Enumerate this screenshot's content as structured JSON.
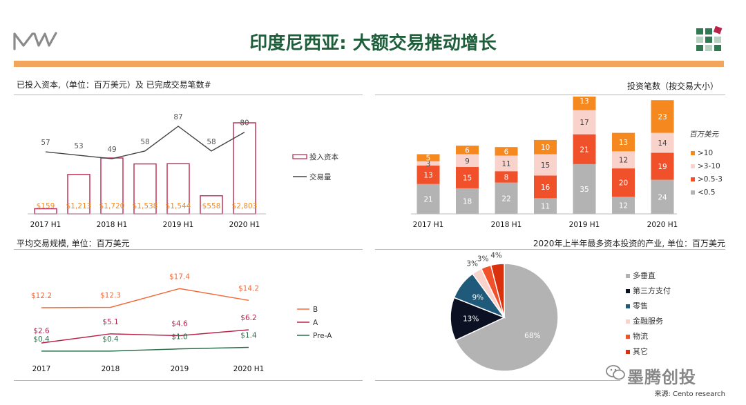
{
  "header": {
    "title": "印度尼西亚: 大额交易推动增长"
  },
  "footer": {
    "watermark": "墨腾创投",
    "source": "来源: Cento research"
  },
  "colors": {
    "brand_green": "#1f5e3b",
    "accent_orange": "#f2a55c",
    "bar_outline": "#c0335a"
  },
  "chart_data": [
    {
      "id": "invested-capital",
      "type": "bar",
      "title": "已投入资本,（单位：百万美元）及 已完成交易笔数#",
      "categories": [
        "2017 H1",
        "2017 H2",
        "2018 H1",
        "2018 H2",
        "2019 H1",
        "2019 H2",
        "2020 H1"
      ],
      "xtick_labels": [
        "2017 H1",
        "",
        "2018 H1",
        "",
        "2019 H1",
        "",
        "2020 H1"
      ],
      "series": [
        {
          "name": "投入资本",
          "values": [
            159,
            1213,
            1720,
            1538,
            1544,
            558,
            2803
          ],
          "labels": [
            "$159",
            "$1,213",
            "$1,720",
            "$1,538",
            "$1,544",
            "$558",
            "$2,803"
          ]
        },
        {
          "name": "交易量",
          "values": [
            57,
            53,
            49,
            58,
            87,
            58,
            80
          ],
          "labels": [
            "57",
            "53",
            "49",
            "58",
            "87",
            "58",
            "80"
          ]
        }
      ]
    },
    {
      "id": "deal-count-by-size",
      "type": "bar",
      "stacked": true,
      "title": "投资笔数（按交易大小）",
      "legend_title": "百万美元",
      "categories": [
        "2017 H1",
        "2017 H2",
        "2018 H1",
        "2018 H2",
        "2019 H1",
        "2019 H2",
        "2020 H1"
      ],
      "xtick_labels": [
        "2017 H1",
        "",
        "2018 H1",
        "",
        "2019 H1",
        "",
        "2020 H1"
      ],
      "series": [
        {
          "name": "<0.5",
          "color": "#b3b3b3",
          "values": [
            21,
            18,
            22,
            11,
            35,
            12,
            24
          ]
        },
        {
          "name": ">0.5-3",
          "color": "#f0502a",
          "values": [
            13,
            15,
            8,
            16,
            21,
            20,
            19
          ]
        },
        {
          "name": ">3-10",
          "color": "#fad2cc",
          "values": [
            3,
            9,
            11,
            15,
            17,
            12,
            14
          ]
        },
        {
          "name": ">10",
          "color": "#f5891f",
          "values": [
            5,
            6,
            6,
            10,
            13,
            13,
            23
          ]
        }
      ]
    },
    {
      "id": "avg-deal-size",
      "type": "line",
      "title": "平均交易规模, 单位：百万美元",
      "categories": [
        "2017",
        "2018",
        "2019",
        "2020 H1"
      ],
      "series": [
        {
          "name": "B",
          "color": "#f46a38",
          "values": [
            12.2,
            12.3,
            17.4,
            14.2
          ],
          "labels": [
            "$12.2",
            "$12.3",
            "$17.4",
            "$14.2"
          ]
        },
        {
          "name": "A",
          "color": "#b8234a",
          "values": [
            2.6,
            5.1,
            4.6,
            6.2
          ],
          "labels": [
            "$2.6",
            "$5.1",
            "$4.6",
            "$6.2"
          ]
        },
        {
          "name": "Pre-A",
          "color": "#2c6e49",
          "values": [
            0.4,
            0.4,
            1.0,
            1.4
          ],
          "labels": [
            "$0.4",
            "$0.4",
            "$1.0",
            "$1.4"
          ]
        }
      ]
    },
    {
      "id": "top-industries",
      "type": "pie",
      "title": "2020年上半年最多资本投资的产业, 单位：百万美元",
      "slices": [
        {
          "name": "多垂直",
          "value": 68,
          "label": "68%",
          "color": "#b3b3b3"
        },
        {
          "name": "第三方支付",
          "value": 13,
          "label": "13%",
          "color": "#0b1023"
        },
        {
          "name": "零售",
          "value": 9,
          "label": "9%",
          "color": "#1f5a7a"
        },
        {
          "name": "金融服务",
          "value": 3,
          "label": "3%",
          "color": "#fad2cc"
        },
        {
          "name": "物流",
          "value": 3,
          "label": "3%",
          "color": "#f0502a"
        },
        {
          "name": "其它",
          "value": 4,
          "label": "4%",
          "color": "#d9300e"
        }
      ]
    }
  ]
}
